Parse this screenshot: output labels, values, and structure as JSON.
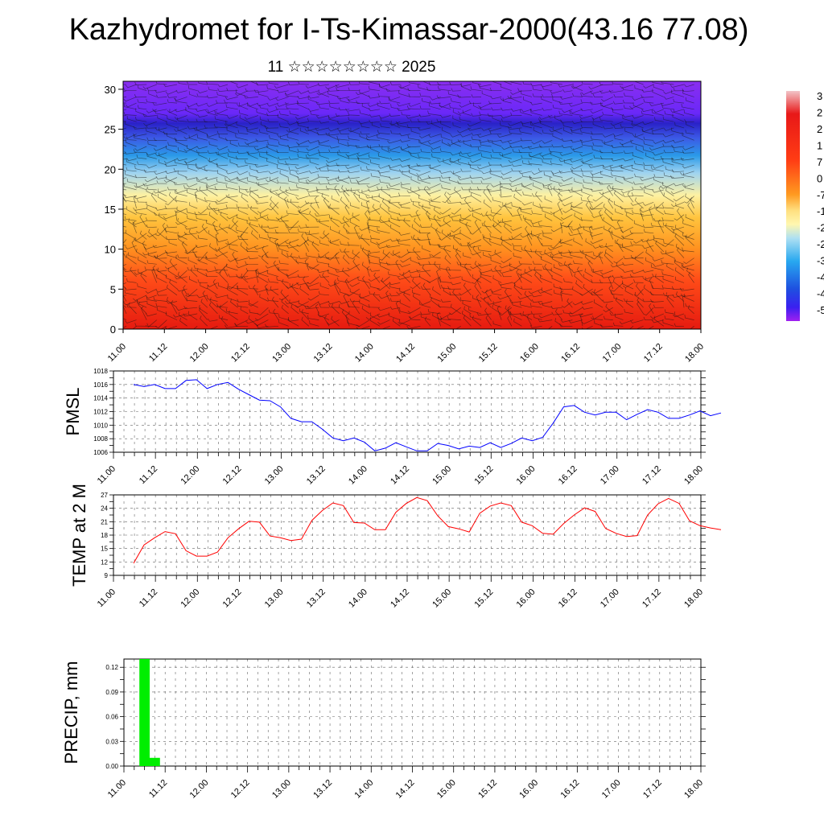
{
  "title": "Kazhydromet for I-Ts-Kimassar-2000(43.16 77.08)",
  "subtitle": "11 ☆☆☆☆☆☆☆☆ 2025",
  "chart_data": [
    {
      "type": "heatmap",
      "title": "",
      "xlabel": "",
      "ylabel": "",
      "x_tick_labels": [
        "11.00",
        "11.12",
        "12.00",
        "12.12",
        "13.00",
        "13.12",
        "14.00",
        "14.12",
        "15.00",
        "15.12",
        "16.00",
        "16.12",
        "17.00",
        "17.12",
        "18.00"
      ],
      "y_ticks": [
        0,
        5,
        10,
        15,
        20,
        25,
        30
      ],
      "ylim": [
        0,
        31
      ],
      "overlay": "wind-barbs",
      "colorbar_labels": [
        "3",
        "2",
        "2",
        "1",
        "7",
        "0",
        "-7",
        "-1",
        "-2",
        "-2",
        "-3",
        "-4",
        "-4",
        "-5"
      ],
      "color_stops": [
        "#a020f0",
        "#4b3cff",
        "#1e5adc",
        "#28a0f0",
        "#b8e4f4",
        "#fff5a0",
        "#ffc83c",
        "#ff8c1e",
        "#ff3c14",
        "#e61414",
        "#e8b4b8"
      ]
    },
    {
      "type": "line",
      "title": "",
      "xlabel": "",
      "ylabel": "PMSL",
      "ylim": [
        1006,
        1018
      ],
      "y_ticks": [
        1006,
        1008,
        1010,
        1012,
        1014,
        1016,
        1018
      ],
      "x_tick_labels": [
        "11.00",
        "11.12",
        "12.00",
        "12.12",
        "13.00",
        "13.12",
        "14.00",
        "14.12",
        "15.00",
        "15.12",
        "16.00",
        "16.12",
        "17.00",
        "17.12",
        "18.00"
      ],
      "series": [
        {
          "color": "#0000ff",
          "values": [
            1016.0,
            1015.7,
            1016.0,
            1015.4,
            1015.4,
            1016.6,
            1016.7,
            1015.4,
            1016.0,
            1016.3,
            1015.3,
            1014.5,
            1013.7,
            1013.6,
            1012.7,
            1011.0,
            1010.5,
            1010.5,
            1009.4,
            1008.1,
            1007.7,
            1008.1,
            1007.5,
            1006.2,
            1006.6,
            1007.4,
            1006.8,
            1006.2,
            1006.2,
            1007.3,
            1007.0,
            1006.5,
            1006.9,
            1006.7,
            1007.4,
            1006.7,
            1007.3,
            1008.1,
            1007.7,
            1008.2,
            1010.3,
            1012.7,
            1012.9,
            1011.9,
            1011.5,
            1011.9,
            1011.9,
            1010.8,
            1011.6,
            1012.3,
            1011.9,
            1011.0,
            1011.0,
            1011.5,
            1012.1,
            1011.4,
            1011.8
          ]
        }
      ]
    },
    {
      "type": "line",
      "title": "",
      "xlabel": "",
      "ylabel": "TEMP at 2 M",
      "ylim": [
        9,
        27
      ],
      "y_ticks": [
        9,
        12,
        15,
        18,
        21,
        24,
        27
      ],
      "x_tick_labels": [
        "11.00",
        "11.12",
        "12.00",
        "12.12",
        "13.00",
        "13.12",
        "14.00",
        "14.12",
        "15.00",
        "15.12",
        "16.00",
        "16.12",
        "17.00",
        "17.12",
        "18.00"
      ],
      "series": [
        {
          "color": "#ff0000",
          "values": [
            11.7,
            15.8,
            17.4,
            18.8,
            18.3,
            14.5,
            13.3,
            13.3,
            14.2,
            17.4,
            19.4,
            21.1,
            20.9,
            17.8,
            17.4,
            16.8,
            17.1,
            21.3,
            23.5,
            25.2,
            24.6,
            20.8,
            20.7,
            19.2,
            19.2,
            23.1,
            25.1,
            26.4,
            25.7,
            22.3,
            19.9,
            19.4,
            18.7,
            22.9,
            24.5,
            25.2,
            24.6,
            20.9,
            20.1,
            18.4,
            18.2,
            20.6,
            22.5,
            24.1,
            23.3,
            19.5,
            18.4,
            17.7,
            17.9,
            22.5,
            25.0,
            26.2,
            25.1,
            21.2,
            20.1,
            19.6,
            19.2
          ]
        }
      ]
    },
    {
      "type": "bar",
      "title": "",
      "xlabel": "",
      "ylabel": "PRECIP, mm",
      "ylim": [
        0,
        0.13
      ],
      "y_tick_labels": [
        "0.00",
        "0.03",
        "0.06",
        "0.09",
        "0.12"
      ],
      "x_tick_labels": [
        "11.00",
        "11.12",
        "12.00",
        "12.12",
        "13.00",
        "13.12",
        "14.00",
        "14.12",
        "15.00",
        "15.12",
        "16.00",
        "16.12",
        "17.00",
        "17.12",
        "18.00"
      ],
      "bar_color": "#00ee00",
      "bars": [
        {
          "step": 2,
          "value": 0.13
        },
        {
          "step": 3,
          "value": 0.01
        }
      ]
    }
  ]
}
